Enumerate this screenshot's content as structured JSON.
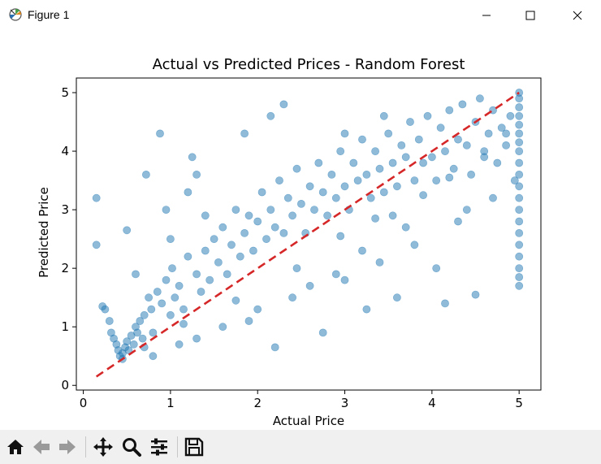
{
  "window": {
    "title": "Figure 1",
    "minimize_label": "Minimize",
    "maximize_label": "Maximize",
    "close_label": "Close"
  },
  "toolbar": {
    "items": [
      {
        "name": "home-button",
        "icon": "home-icon"
      },
      {
        "name": "back-button",
        "icon": "arrow-left-icon"
      },
      {
        "name": "forward-button",
        "icon": "arrow-right-icon"
      },
      {
        "name": "pan-button",
        "icon": "move-icon"
      },
      {
        "name": "zoom-button",
        "icon": "magnifier-icon"
      },
      {
        "name": "configure-subplots-button",
        "icon": "sliders-icon"
      },
      {
        "name": "save-button",
        "icon": "floppy-disk-icon"
      }
    ]
  },
  "colors": {
    "points": "#1f77b4",
    "reference_line": "#d62728"
  },
  "chart_data": {
    "type": "scatter",
    "title": "Actual vs Predicted Prices - Random Forest",
    "xlabel": "Actual Price",
    "ylabel": "Predicted Price",
    "xlim": [
      -0.08,
      5.25
    ],
    "ylim": [
      -0.08,
      5.25
    ],
    "xticks": [
      "0",
      "1",
      "2",
      "3",
      "4",
      "5"
    ],
    "yticks": [
      "0",
      "1",
      "2",
      "3",
      "4",
      "5"
    ],
    "grid": false,
    "legend": "none",
    "reference_line": {
      "style": "dashed",
      "color": "#d62728",
      "from": [
        0.15,
        0.15
      ],
      "to": [
        5.0,
        5.0
      ]
    },
    "series": [
      {
        "marker_alpha": 0.5,
        "points": [
          [
            0.15,
            3.2
          ],
          [
            0.15,
            2.4
          ],
          [
            0.22,
            1.35
          ],
          [
            0.25,
            1.3
          ],
          [
            0.3,
            1.1
          ],
          [
            0.32,
            0.9
          ],
          [
            0.35,
            0.8
          ],
          [
            0.38,
            0.7
          ],
          [
            0.4,
            0.6
          ],
          [
            0.42,
            0.5
          ],
          [
            0.45,
            0.55
          ],
          [
            0.48,
            0.65
          ],
          [
            0.5,
            0.75
          ],
          [
            0.52,
            0.6
          ],
          [
            0.55,
            0.85
          ],
          [
            0.58,
            0.7
          ],
          [
            0.6,
            1.0
          ],
          [
            0.62,
            0.9
          ],
          [
            0.65,
            1.1
          ],
          [
            0.68,
            0.8
          ],
          [
            0.7,
            1.2
          ],
          [
            0.72,
            3.6
          ],
          [
            0.75,
            1.5
          ],
          [
            0.78,
            1.3
          ],
          [
            0.8,
            0.9
          ],
          [
            0.85,
            1.6
          ],
          [
            0.88,
            4.3
          ],
          [
            0.9,
            1.4
          ],
          [
            0.95,
            1.8
          ],
          [
            1.0,
            1.2
          ],
          [
            1.02,
            2.0
          ],
          [
            1.05,
            1.5
          ],
          [
            1.1,
            1.7
          ],
          [
            1.15,
            1.3
          ],
          [
            1.2,
            2.2
          ],
          [
            1.25,
            3.9
          ],
          [
            1.3,
            1.9
          ],
          [
            1.35,
            1.6
          ],
          [
            1.4,
            2.3
          ],
          [
            1.45,
            1.8
          ],
          [
            1.5,
            2.5
          ],
          [
            1.55,
            2.1
          ],
          [
            1.6,
            2.7
          ],
          [
            1.65,
            1.9
          ],
          [
            1.7,
            2.4
          ],
          [
            1.75,
            3.0
          ],
          [
            1.8,
            2.2
          ],
          [
            1.85,
            2.6
          ],
          [
            1.9,
            2.9
          ],
          [
            1.95,
            2.3
          ],
          [
            2.0,
            2.8
          ],
          [
            2.05,
            3.3
          ],
          [
            2.1,
            2.5
          ],
          [
            2.15,
            3.0
          ],
          [
            2.2,
            2.7
          ],
          [
            2.25,
            3.5
          ],
          [
            2.3,
            2.6
          ],
          [
            2.35,
            3.2
          ],
          [
            2.4,
            2.9
          ],
          [
            2.45,
            3.7
          ],
          [
            2.5,
            3.1
          ],
          [
            2.55,
            2.6
          ],
          [
            2.6,
            3.4
          ],
          [
            2.65,
            3.0
          ],
          [
            2.7,
            3.8
          ],
          [
            2.75,
            3.3
          ],
          [
            2.8,
            2.9
          ],
          [
            2.85,
            3.6
          ],
          [
            2.9,
            3.2
          ],
          [
            2.95,
            4.0
          ],
          [
            3.0,
            3.4
          ],
          [
            3.05,
            3.0
          ],
          [
            3.1,
            3.8
          ],
          [
            3.15,
            3.5
          ],
          [
            3.2,
            4.2
          ],
          [
            3.25,
            3.6
          ],
          [
            3.3,
            3.2
          ],
          [
            3.35,
            4.0
          ],
          [
            3.4,
            3.7
          ],
          [
            3.45,
            3.3
          ],
          [
            3.5,
            4.3
          ],
          [
            3.55,
            3.8
          ],
          [
            3.6,
            3.4
          ],
          [
            3.65,
            4.1
          ],
          [
            3.7,
            3.9
          ],
          [
            3.75,
            4.5
          ],
          [
            3.8,
            3.5
          ],
          [
            3.85,
            4.2
          ],
          [
            3.9,
            3.8
          ],
          [
            3.95,
            4.6
          ],
          [
            4.0,
            3.9
          ],
          [
            4.05,
            3.5
          ],
          [
            4.1,
            4.4
          ],
          [
            4.15,
            4.0
          ],
          [
            4.2,
            4.7
          ],
          [
            4.25,
            3.7
          ],
          [
            4.3,
            4.2
          ],
          [
            4.35,
            4.8
          ],
          [
            4.4,
            4.1
          ],
          [
            4.45,
            3.6
          ],
          [
            4.5,
            4.5
          ],
          [
            4.55,
            4.9
          ],
          [
            4.6,
            4.0
          ],
          [
            4.65,
            4.3
          ],
          [
            4.7,
            4.7
          ],
          [
            4.75,
            3.8
          ],
          [
            4.8,
            4.4
          ],
          [
            4.85,
            4.1
          ],
          [
            4.9,
            4.6
          ],
          [
            4.95,
            3.5
          ],
          [
            2.2,
            0.65
          ],
          [
            2.75,
            0.9
          ],
          [
            3.25,
            1.3
          ],
          [
            3.6,
            1.5
          ],
          [
            4.15,
            1.4
          ],
          [
            4.5,
            1.55
          ],
          [
            3.0,
            1.8
          ],
          [
            3.4,
            2.1
          ],
          [
            3.8,
            2.4
          ],
          [
            4.3,
            2.8
          ],
          [
            4.05,
            2.0
          ],
          [
            1.85,
            4.3
          ],
          [
            2.15,
            4.6
          ],
          [
            2.3,
            4.8
          ],
          [
            3.0,
            4.3
          ],
          [
            3.45,
            4.6
          ],
          [
            1.3,
            3.6
          ],
          [
            0.95,
            3.0
          ],
          [
            1.2,
            3.3
          ],
          [
            0.5,
            2.65
          ],
          [
            0.6,
            1.9
          ],
          [
            1.0,
            2.5
          ],
          [
            1.4,
            2.9
          ],
          [
            1.9,
            1.1
          ],
          [
            2.4,
            1.5
          ],
          [
            2.9,
            1.9
          ],
          [
            1.6,
            1.0
          ],
          [
            1.1,
            0.7
          ],
          [
            0.8,
            0.5
          ],
          [
            1.3,
            0.8
          ],
          [
            2.0,
            1.3
          ],
          [
            2.6,
            1.7
          ],
          [
            3.2,
            2.3
          ],
          [
            3.7,
            2.7
          ],
          [
            4.4,
            3.0
          ],
          [
            4.7,
            3.2
          ],
          [
            3.55,
            2.9
          ],
          [
            2.45,
            2.0
          ],
          [
            1.75,
            1.45
          ],
          [
            1.15,
            1.05
          ],
          [
            0.7,
            0.65
          ],
          [
            0.45,
            0.45
          ],
          [
            2.95,
            2.55
          ],
          [
            3.35,
            2.85
          ],
          [
            3.9,
            3.25
          ],
          [
            4.2,
            3.55
          ],
          [
            4.6,
            3.9
          ],
          [
            4.85,
            4.3
          ],
          [
            5.0,
            1.7
          ],
          [
            5.0,
            1.85
          ],
          [
            5.0,
            2.0
          ],
          [
            5.0,
            2.2
          ],
          [
            5.0,
            2.4
          ],
          [
            5.0,
            2.6
          ],
          [
            5.0,
            2.8
          ],
          [
            5.0,
            3.0
          ],
          [
            5.0,
            3.2
          ],
          [
            5.0,
            3.4
          ],
          [
            5.0,
            3.6
          ],
          [
            5.0,
            3.8
          ],
          [
            5.0,
            4.0
          ],
          [
            5.0,
            4.15
          ],
          [
            5.0,
            4.3
          ],
          [
            5.0,
            4.45
          ],
          [
            5.0,
            4.6
          ],
          [
            5.0,
            4.75
          ],
          [
            5.0,
            4.9
          ],
          [
            5.0,
            5.0
          ]
        ]
      }
    ]
  }
}
